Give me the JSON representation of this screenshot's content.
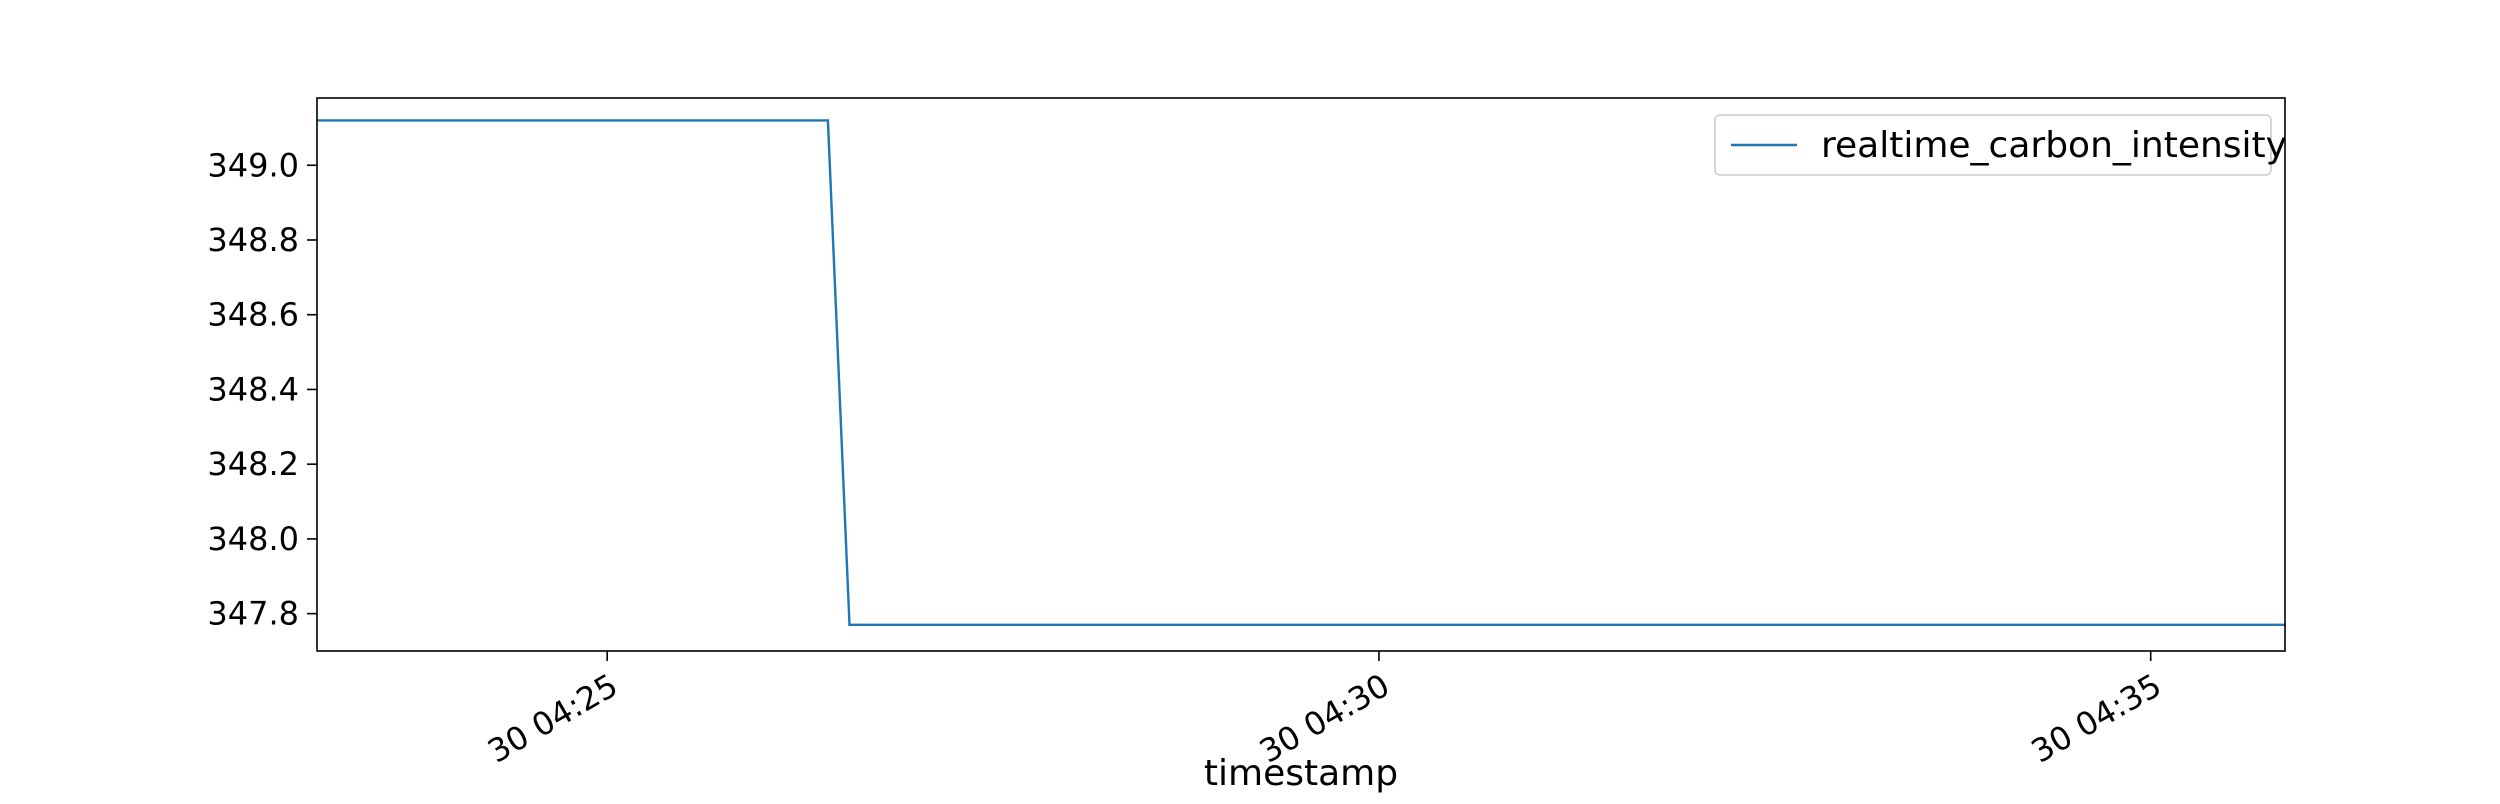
{
  "chart_data": {
    "type": "line",
    "xlabel": "timestamp",
    "ylabel": "",
    "title": "",
    "x_axis": {
      "type": "time",
      "range": [
        "30 04:23:07",
        "30 04:35:52"
      ],
      "ticks": [
        "30 04:25",
        "30 04:30",
        "30 04:35"
      ],
      "tick_minutes": [
        25,
        30,
        35
      ],
      "range_minutes": [
        23.12,
        35.87
      ]
    },
    "y_axis": {
      "range": [
        347.7,
        349.18
      ],
      "ticks": [
        347.8,
        348.0,
        348.2,
        348.4,
        348.6,
        348.8,
        349.0
      ],
      "tick_labels": [
        "347.8",
        "348.0",
        "348.2",
        "348.4",
        "348.6",
        "348.8",
        "349.0"
      ]
    },
    "grid": false,
    "legend": {
      "placement": "upper-right",
      "entries": [
        "realtime_carbon_intensity"
      ]
    },
    "colors": {
      "series": "#1f77b4"
    },
    "series": [
      {
        "name": "realtime_carbon_intensity",
        "x_minutes": [
          23.12,
          26.43,
          26.57,
          35.87
        ],
        "x_labels": [
          "30 04:23:07",
          "30 04:26:26",
          "30 04:26:34",
          "30 04:35:52"
        ],
        "y": [
          349.12,
          349.12,
          347.77,
          347.77
        ]
      }
    ]
  }
}
